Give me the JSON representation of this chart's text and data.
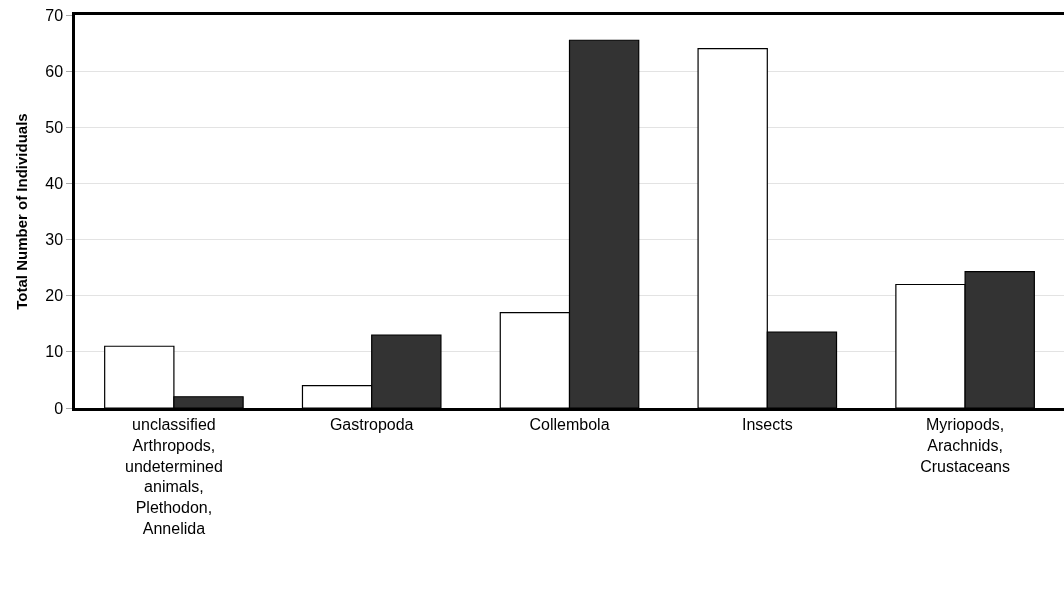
{
  "chart_data": {
    "type": "bar",
    "ylabel": "Total Number of Individuals",
    "categories": [
      "unclassified Arthropods, undetermined animals, Plethodon, Annelida",
      "Gastropoda",
      "Collembola",
      "Insects",
      "Myriopods, Arachnids, Crustaceans"
    ],
    "series": [
      {
        "color": "#ffffff",
        "values": [
          11,
          4,
          17,
          64,
          22
        ]
      },
      {
        "color": "#333333",
        "values": [
          2,
          13,
          65.5,
          13.5,
          24.3
        ]
      }
    ],
    "ylim": [
      0,
      70
    ],
    "yticks": [
      0,
      10,
      20,
      30,
      40,
      50,
      60,
      70
    ],
    "grid": "y"
  }
}
